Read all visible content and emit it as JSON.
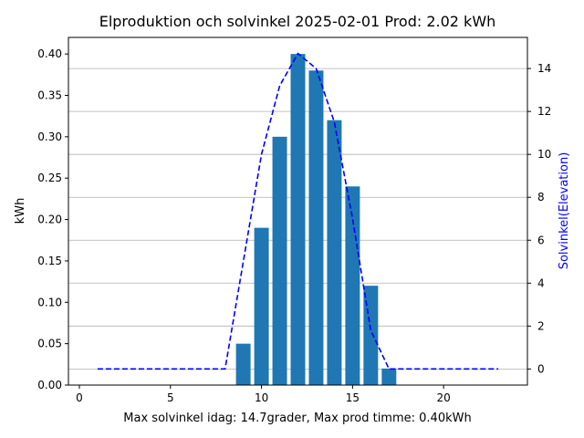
{
  "chart_data": {
    "type": "bar",
    "title": "Elproduktion och solvinkel 2025-02-01 Prod: 2.02 kWh",
    "xlabel": "Max solvinkel idag: 14.7grader, Max prod timme: 0.40kWh",
    "ylabel": "kWh",
    "y2label": "Solvinkel(Elevation)",
    "xlim": [
      -0.6,
      24.6
    ],
    "ylim": [
      0,
      0.42
    ],
    "y2lim": [
      -0.75,
      15.45
    ],
    "xticks": [
      "0",
      "5",
      "10",
      "15",
      "20"
    ],
    "xtick_values": [
      0,
      5,
      10,
      15,
      20
    ],
    "yticks": [
      "0.00",
      "0.05",
      "0.10",
      "0.15",
      "0.20",
      "0.25",
      "0.30",
      "0.35",
      "0.40"
    ],
    "ytick_values": [
      0,
      0.05,
      0.1,
      0.15,
      0.2,
      0.25,
      0.3,
      0.35,
      0.4
    ],
    "y2ticks": [
      "0",
      "2",
      "4",
      "6",
      "8",
      "10",
      "12",
      "14"
    ],
    "y2tick_values": [
      0,
      2,
      4,
      6,
      8,
      10,
      12,
      14
    ],
    "grid_y2": true,
    "bars": {
      "color": "#1f77b4",
      "x": [
        9,
        10,
        11,
        12,
        13,
        14,
        15,
        16,
        17
      ],
      "values": [
        0.05,
        0.19,
        0.3,
        0.4,
        0.38,
        0.32,
        0.24,
        0.12,
        0.02
      ]
    },
    "line": {
      "color": "#0000ff",
      "style": "dashed",
      "x": [
        1,
        2,
        3,
        4,
        5,
        6,
        7,
        8,
        9,
        10,
        11,
        12,
        13,
        14,
        15,
        16,
        17,
        18,
        19,
        20,
        21,
        22,
        23
      ],
      "values": [
        0,
        0,
        0,
        0,
        0,
        0,
        0,
        0,
        5,
        10,
        13.2,
        14.7,
        14,
        11.5,
        7,
        1.8,
        0,
        0,
        0,
        0,
        0,
        0,
        0
      ]
    }
  }
}
